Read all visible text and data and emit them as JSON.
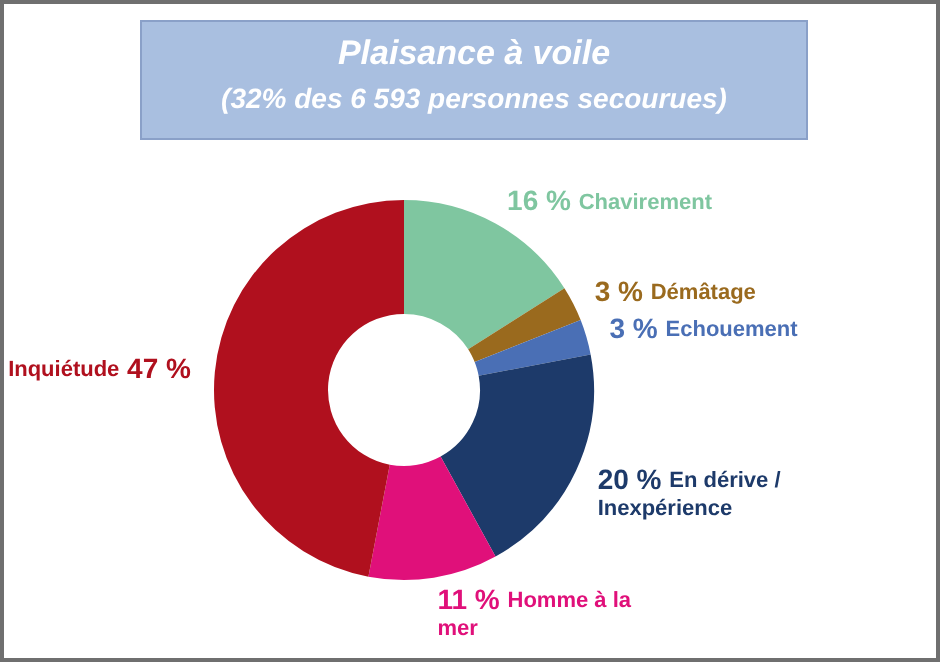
{
  "chart_data": {
    "type": "donut",
    "title": "Plaisance à voile",
    "subtitle": "(32% des 6 593 personnes secourues)",
    "categories": [
      "Chavirement",
      "Démâtage",
      "Echouement",
      "En dérive / Inexpérience",
      "Homme à la mer",
      "Inquiétude"
    ],
    "values": [
      16,
      3,
      3,
      20,
      11,
      47
    ],
    "value_labels": [
      "16 %",
      "3 %",
      "3 %",
      "20 %",
      "11 %",
      "47 %"
    ],
    "colors": [
      "#7fc6a0",
      "#9a6a1e",
      "#4a6fb5",
      "#1d3a6a",
      "#e0107a",
      "#b0101e"
    ],
    "legend": false
  }
}
